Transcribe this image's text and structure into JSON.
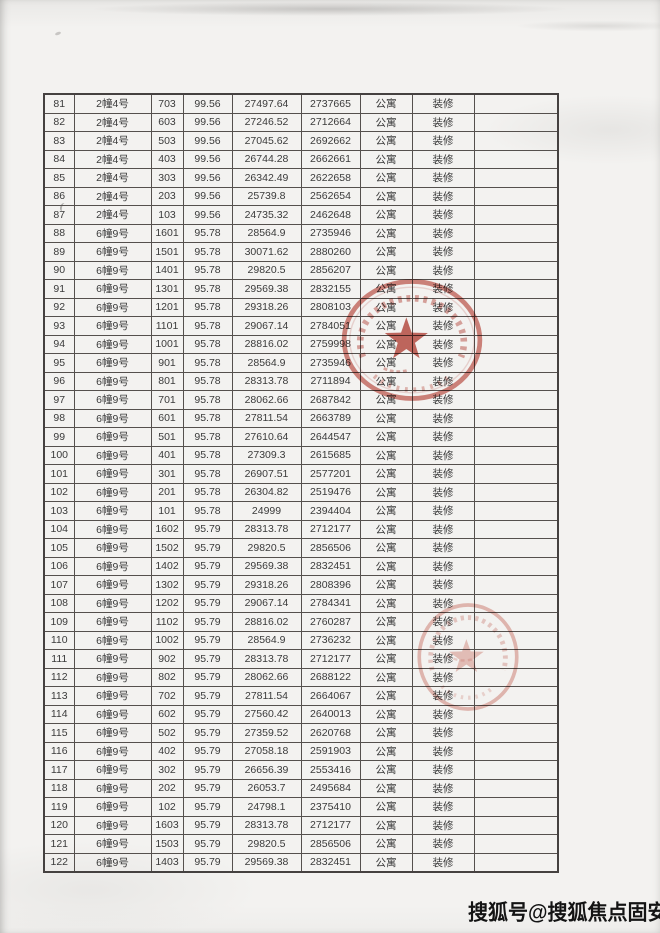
{
  "page": {
    "paper_color": "#f2f1ef",
    "seal_color": "#bf4a3e"
  },
  "watermark": {
    "text": "搜狐号@搜狐焦点固安站"
  },
  "stamps": [
    {
      "name": "round-official-seal-with-star-upper"
    },
    {
      "name": "round-official-seal-with-star-lower"
    }
  ],
  "table": {
    "rows": [
      [
        "81",
        "2幢4号",
        "703",
        "99.56",
        "27497.64",
        "2737665",
        "公寓",
        "装修",
        ""
      ],
      [
        "82",
        "2幢4号",
        "603",
        "99.56",
        "27246.52",
        "2712664",
        "公寓",
        "装修",
        ""
      ],
      [
        "83",
        "2幢4号",
        "503",
        "99.56",
        "27045.62",
        "2692662",
        "公寓",
        "装修",
        ""
      ],
      [
        "84",
        "2幢4号",
        "403",
        "99.56",
        "26744.28",
        "2662661",
        "公寓",
        "装修",
        ""
      ],
      [
        "85",
        "2幢4号",
        "303",
        "99.56",
        "26342.49",
        "2622658",
        "公寓",
        "装修",
        ""
      ],
      [
        "86",
        "2幢4号",
        "203",
        "99.56",
        "25739.8",
        "2562654",
        "公寓",
        "装修",
        ""
      ],
      [
        "87",
        "2幢4号",
        "103",
        "99.56",
        "24735.32",
        "2462648",
        "公寓",
        "装修",
        ""
      ],
      [
        "88",
        "6幢9号",
        "1601",
        "95.78",
        "28564.9",
        "2735946",
        "公寓",
        "装修",
        ""
      ],
      [
        "89",
        "6幢9号",
        "1501",
        "95.78",
        "30071.62",
        "2880260",
        "公寓",
        "装修",
        ""
      ],
      [
        "90",
        "6幢9号",
        "1401",
        "95.78",
        "29820.5",
        "2856207",
        "公寓",
        "装修",
        ""
      ],
      [
        "91",
        "6幢9号",
        "1301",
        "95.78",
        "29569.38",
        "2832155",
        "公寓",
        "装修",
        ""
      ],
      [
        "92",
        "6幢9号",
        "1201",
        "95.78",
        "29318.26",
        "2808103",
        "公寓",
        "装修",
        ""
      ],
      [
        "93",
        "6幢9号",
        "1101",
        "95.78",
        "29067.14",
        "2784051",
        "公寓",
        "装修",
        ""
      ],
      [
        "94",
        "6幢9号",
        "1001",
        "95.78",
        "28816.02",
        "2759998",
        "公寓",
        "装修",
        ""
      ],
      [
        "95",
        "6幢9号",
        "901",
        "95.78",
        "28564.9",
        "2735946",
        "公寓",
        "装修",
        ""
      ],
      [
        "96",
        "6幢9号",
        "801",
        "95.78",
        "28313.78",
        "2711894",
        "公寓",
        "装修",
        ""
      ],
      [
        "97",
        "6幢9号",
        "701",
        "95.78",
        "28062.66",
        "2687842",
        "公寓",
        "装修",
        ""
      ],
      [
        "98",
        "6幢9号",
        "601",
        "95.78",
        "27811.54",
        "2663789",
        "公寓",
        "装修",
        ""
      ],
      [
        "99",
        "6幢9号",
        "501",
        "95.78",
        "27610.64",
        "2644547",
        "公寓",
        "装修",
        ""
      ],
      [
        "100",
        "6幢9号",
        "401",
        "95.78",
        "27309.3",
        "2615685",
        "公寓",
        "装修",
        ""
      ],
      [
        "101",
        "6幢9号",
        "301",
        "95.78",
        "26907.51",
        "2577201",
        "公寓",
        "装修",
        ""
      ],
      [
        "102",
        "6幢9号",
        "201",
        "95.78",
        "26304.82",
        "2519476",
        "公寓",
        "装修",
        ""
      ],
      [
        "103",
        "6幢9号",
        "101",
        "95.78",
        "24999",
        "2394404",
        "公寓",
        "装修",
        ""
      ],
      [
        "104",
        "6幢9号",
        "1602",
        "95.79",
        "28313.78",
        "2712177",
        "公寓",
        "装修",
        ""
      ],
      [
        "105",
        "6幢9号",
        "1502",
        "95.79",
        "29820.5",
        "2856506",
        "公寓",
        "装修",
        ""
      ],
      [
        "106",
        "6幢9号",
        "1402",
        "95.79",
        "29569.38",
        "2832451",
        "公寓",
        "装修",
        ""
      ],
      [
        "107",
        "6幢9号",
        "1302",
        "95.79",
        "29318.26",
        "2808396",
        "公寓",
        "装修",
        ""
      ],
      [
        "108",
        "6幢9号",
        "1202",
        "95.79",
        "29067.14",
        "2784341",
        "公寓",
        "装修",
        ""
      ],
      [
        "109",
        "6幢9号",
        "1102",
        "95.79",
        "28816.02",
        "2760287",
        "公寓",
        "装修",
        ""
      ],
      [
        "110",
        "6幢9号",
        "1002",
        "95.79",
        "28564.9",
        "2736232",
        "公寓",
        "装修",
        ""
      ],
      [
        "111",
        "6幢9号",
        "902",
        "95.79",
        "28313.78",
        "2712177",
        "公寓",
        "装修",
        ""
      ],
      [
        "112",
        "6幢9号",
        "802",
        "95.79",
        "28062.66",
        "2688122",
        "公寓",
        "装修",
        ""
      ],
      [
        "113",
        "6幢9号",
        "702",
        "95.79",
        "27811.54",
        "2664067",
        "公寓",
        "装修",
        ""
      ],
      [
        "114",
        "6幢9号",
        "602",
        "95.79",
        "27560.42",
        "2640013",
        "公寓",
        "装修",
        ""
      ],
      [
        "115",
        "6幢9号",
        "502",
        "95.79",
        "27359.52",
        "2620768",
        "公寓",
        "装修",
        ""
      ],
      [
        "116",
        "6幢9号",
        "402",
        "95.79",
        "27058.18",
        "2591903",
        "公寓",
        "装修",
        ""
      ],
      [
        "117",
        "6幢9号",
        "302",
        "95.79",
        "26656.39",
        "2553416",
        "公寓",
        "装修",
        ""
      ],
      [
        "118",
        "6幢9号",
        "202",
        "95.79",
        "26053.7",
        "2495684",
        "公寓",
        "装修",
        ""
      ],
      [
        "119",
        "6幢9号",
        "102",
        "95.79",
        "24798.1",
        "2375410",
        "公寓",
        "装修",
        ""
      ],
      [
        "120",
        "6幢9号",
        "1603",
        "95.79",
        "28313.78",
        "2712177",
        "公寓",
        "装修",
        ""
      ],
      [
        "121",
        "6幢9号",
        "1503",
        "95.79",
        "29820.5",
        "2856506",
        "公寓",
        "装修",
        ""
      ],
      [
        "122",
        "6幢9号",
        "1403",
        "95.79",
        "29569.38",
        "2832451",
        "公寓",
        "装修",
        ""
      ]
    ]
  }
}
